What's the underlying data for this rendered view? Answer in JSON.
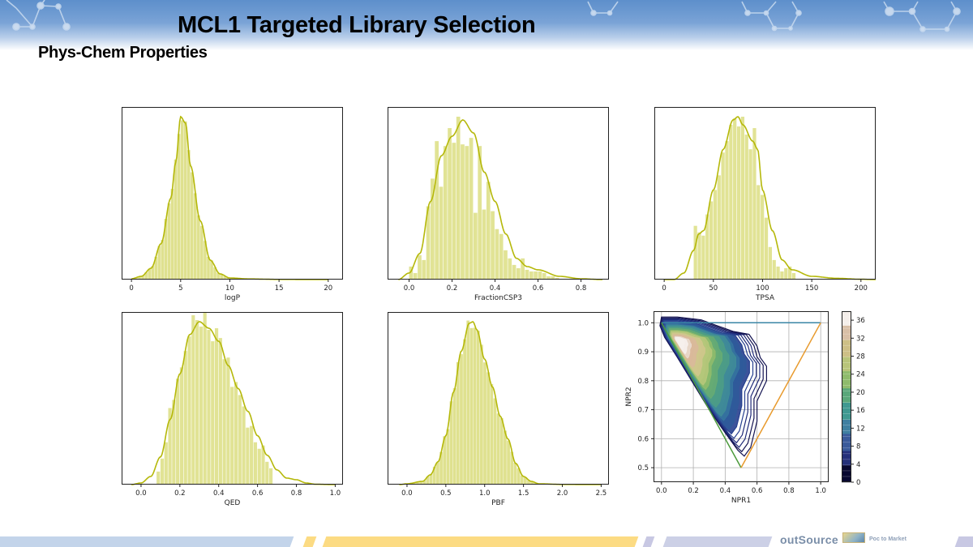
{
  "slide": {
    "title": "MCL1 Targeted Library Selection",
    "subtitle": "Phys-Chem Properties",
    "footer": {
      "brand": "outSource",
      "brand_tagline": "Poc to Market"
    }
  },
  "colors": {
    "hist_fill": "#dfe18f",
    "kde_line": "#b5b80a",
    "header_blue": "#5d8fcb",
    "footer_blue": "#c3d4ea",
    "footer_yellow": "#fcdb83",
    "footer_lavender": "#c8c8e3"
  },
  "chart_data": [
    {
      "id": "logP",
      "type": "bar",
      "subtype": "histogram+kde",
      "title": "",
      "xlabel": "logP",
      "ylabel": "",
      "xlim": [
        -1,
        21.5
      ],
      "xticks": [
        0,
        5,
        10,
        15,
        20
      ],
      "grid": false,
      "x": [
        0,
        1,
        2,
        3,
        4,
        4.5,
        5,
        5.5,
        6,
        7,
        8,
        9,
        10,
        12,
        15,
        20
      ],
      "values": [
        0.005,
        0.02,
        0.07,
        0.22,
        0.5,
        0.72,
        1.0,
        0.96,
        0.7,
        0.36,
        0.12,
        0.035,
        0.01,
        0.004,
        0.001,
        0.0
      ]
    },
    {
      "id": "FractionCSP3",
      "type": "bar",
      "subtype": "histogram+kde",
      "title": "",
      "xlabel": "FractionCSP3",
      "ylabel": "",
      "xlim": [
        -0.1,
        0.93
      ],
      "xticks": [
        0.0,
        0.2,
        0.4,
        0.6,
        0.8
      ],
      "grid": false,
      "x": [
        -0.05,
        0.0,
        0.05,
        0.1,
        0.15,
        0.2,
        0.25,
        0.3,
        0.35,
        0.4,
        0.45,
        0.5,
        0.55,
        0.6,
        0.7,
        0.8,
        0.9
      ],
      "values": [
        0.0,
        0.04,
        0.16,
        0.48,
        0.76,
        0.88,
        0.98,
        0.9,
        0.66,
        0.48,
        0.28,
        0.13,
        0.08,
        0.06,
        0.02,
        0.005,
        0.0
      ],
      "bars_x": [
        0.01,
        0.03,
        0.05,
        0.07,
        0.09,
        0.11,
        0.13,
        0.15,
        0.17,
        0.19,
        0.21,
        0.23,
        0.25,
        0.27,
        0.29,
        0.31,
        0.33,
        0.35,
        0.37,
        0.39,
        0.41,
        0.43,
        0.45,
        0.47,
        0.49,
        0.51,
        0.53,
        0.55,
        0.57,
        0.59,
        0.61,
        0.63,
        0.65,
        0.67,
        0.69
      ],
      "bars": [
        0.08,
        0.04,
        0.15,
        0.12,
        0.45,
        0.62,
        0.85,
        0.57,
        0.82,
        0.93,
        0.84,
        1.0,
        0.83,
        0.82,
        0.87,
        0.41,
        0.82,
        0.43,
        0.6,
        0.42,
        0.31,
        0.28,
        0.18,
        0.13,
        0.09,
        0.07,
        0.13,
        0.06,
        0.05,
        0.05,
        0.05,
        0.04,
        0.02,
        0.02,
        0.01
      ]
    },
    {
      "id": "TPSA",
      "type": "bar",
      "subtype": "histogram+kde",
      "title": "",
      "xlabel": "TPSA",
      "ylabel": "",
      "xlim": [
        -10,
        215
      ],
      "xticks": [
        0,
        50,
        100,
        150,
        200
      ],
      "grid": false,
      "x": [
        0,
        10,
        20,
        30,
        35,
        40,
        50,
        60,
        70,
        75,
        80,
        90,
        95,
        100,
        110,
        120,
        130,
        150,
        175,
        200,
        215
      ],
      "values": [
        0.0,
        0.0,
        0.04,
        0.18,
        0.28,
        0.3,
        0.55,
        0.8,
        0.98,
        1.0,
        0.95,
        0.85,
        0.8,
        0.55,
        0.3,
        0.12,
        0.06,
        0.02,
        0.008,
        0.002,
        0.0
      ],
      "bars_x": [
        32,
        36,
        40,
        44,
        48,
        52,
        56,
        60,
        64,
        68,
        72,
        76,
        80,
        84,
        88,
        92,
        96,
        100,
        104,
        108,
        112,
        116,
        120,
        124,
        128,
        132
      ],
      "bars": [
        0.33,
        0.29,
        0.27,
        0.4,
        0.48,
        0.55,
        0.64,
        0.78,
        0.85,
        0.95,
        0.99,
        0.94,
        1.0,
        0.89,
        0.8,
        0.93,
        0.58,
        0.52,
        0.38,
        0.2,
        0.12,
        0.08,
        0.05,
        0.07,
        0.08,
        0.04
      ]
    },
    {
      "id": "QED",
      "type": "bar",
      "subtype": "histogram+kde",
      "title": "",
      "xlabel": "QED",
      "ylabel": "",
      "xlim": [
        -0.1,
        1.04
      ],
      "xticks": [
        0.0,
        0.2,
        0.4,
        0.6,
        0.8,
        1.0
      ],
      "grid": false,
      "x": [
        -0.05,
        0.0,
        0.05,
        0.1,
        0.15,
        0.2,
        0.25,
        0.3,
        0.35,
        0.4,
        0.45,
        0.5,
        0.55,
        0.6,
        0.65,
        0.7,
        0.75,
        0.8,
        0.85,
        0.9,
        1.0
      ],
      "values": [
        0.0,
        0.01,
        0.05,
        0.17,
        0.4,
        0.68,
        0.92,
        1.0,
        0.96,
        0.88,
        0.73,
        0.59,
        0.45,
        0.3,
        0.18,
        0.09,
        0.04,
        0.03,
        0.01,
        0.002,
        0.0
      ],
      "bars_x": [
        0.09,
        0.11,
        0.13,
        0.15,
        0.17,
        0.19,
        0.21,
        0.23,
        0.25,
        0.27,
        0.29,
        0.31,
        0.33,
        0.35,
        0.37,
        0.39,
        0.41,
        0.43,
        0.45,
        0.47,
        0.49,
        0.51,
        0.53,
        0.55,
        0.57,
        0.59,
        0.61,
        0.63,
        0.65,
        0.67
      ],
      "bars": [
        0.08,
        0.16,
        0.26,
        0.47,
        0.52,
        0.65,
        0.72,
        0.82,
        0.91,
        1.04,
        1.01,
        0.97,
        1.06,
        0.95,
        0.88,
        0.96,
        0.9,
        0.77,
        0.78,
        0.6,
        0.63,
        0.55,
        0.48,
        0.35,
        0.36,
        0.26,
        0.22,
        0.24,
        0.14,
        0.1
      ]
    },
    {
      "id": "PBF",
      "type": "bar",
      "subtype": "histogram+kde",
      "title": "",
      "xlabel": "PBF",
      "ylabel": "",
      "xlim": [
        -0.25,
        2.6
      ],
      "xticks": [
        0.0,
        0.5,
        1.0,
        1.5,
        2.0,
        2.5
      ],
      "grid": false,
      "x": [
        -0.1,
        0.0,
        0.2,
        0.3,
        0.4,
        0.5,
        0.6,
        0.7,
        0.8,
        0.85,
        0.9,
        1.0,
        1.1,
        1.2,
        1.3,
        1.4,
        1.5,
        1.6,
        1.7,
        2.0,
        2.5
      ],
      "values": [
        0.0,
        0.005,
        0.02,
        0.06,
        0.14,
        0.3,
        0.57,
        0.82,
        0.99,
        1.0,
        0.95,
        0.77,
        0.6,
        0.42,
        0.28,
        0.13,
        0.05,
        0.02,
        0.005,
        0.001,
        0.0
      ]
    },
    {
      "id": "PMI",
      "type": "heatmap",
      "subtype": "kde-contour",
      "title": "",
      "xlabel": "NPR1",
      "ylabel": "NPR2",
      "xlim": [
        -0.05,
        1.05
      ],
      "ylim": [
        0.45,
        1.04
      ],
      "xticks": [
        0.0,
        0.2,
        0.4,
        0.6,
        0.8,
        1.0
      ],
      "yticks": [
        0.5,
        0.6,
        0.7,
        0.8,
        0.9,
        1.0
      ],
      "grid": true,
      "colorbar": {
        "ticks": [
          0,
          4,
          8,
          12,
          16,
          20,
          24,
          28,
          32,
          36
        ],
        "range": [
          0,
          38
        ],
        "colormap": "gist_earth"
      },
      "triangle": {
        "vertices": [
          [
            0.0,
            1.0
          ],
          [
            0.5,
            0.5
          ],
          [
            1.0,
            1.0
          ]
        ],
        "edges": [
          {
            "from": [
              0.0,
              1.0
            ],
            "to": [
              1.0,
              1.0
            ],
            "color": "#3a86a6"
          },
          {
            "from": [
              0.0,
              1.0
            ],
            "to": [
              0.5,
              0.5
            ],
            "color": "#4c9a3c"
          },
          {
            "from": [
              0.5,
              0.5
            ],
            "to": [
              1.0,
              1.0
            ],
            "color": "#e89a2c"
          }
        ]
      },
      "density_peak": {
        "npr1": 0.1,
        "npr2": 0.94,
        "value": 38
      }
    }
  ]
}
